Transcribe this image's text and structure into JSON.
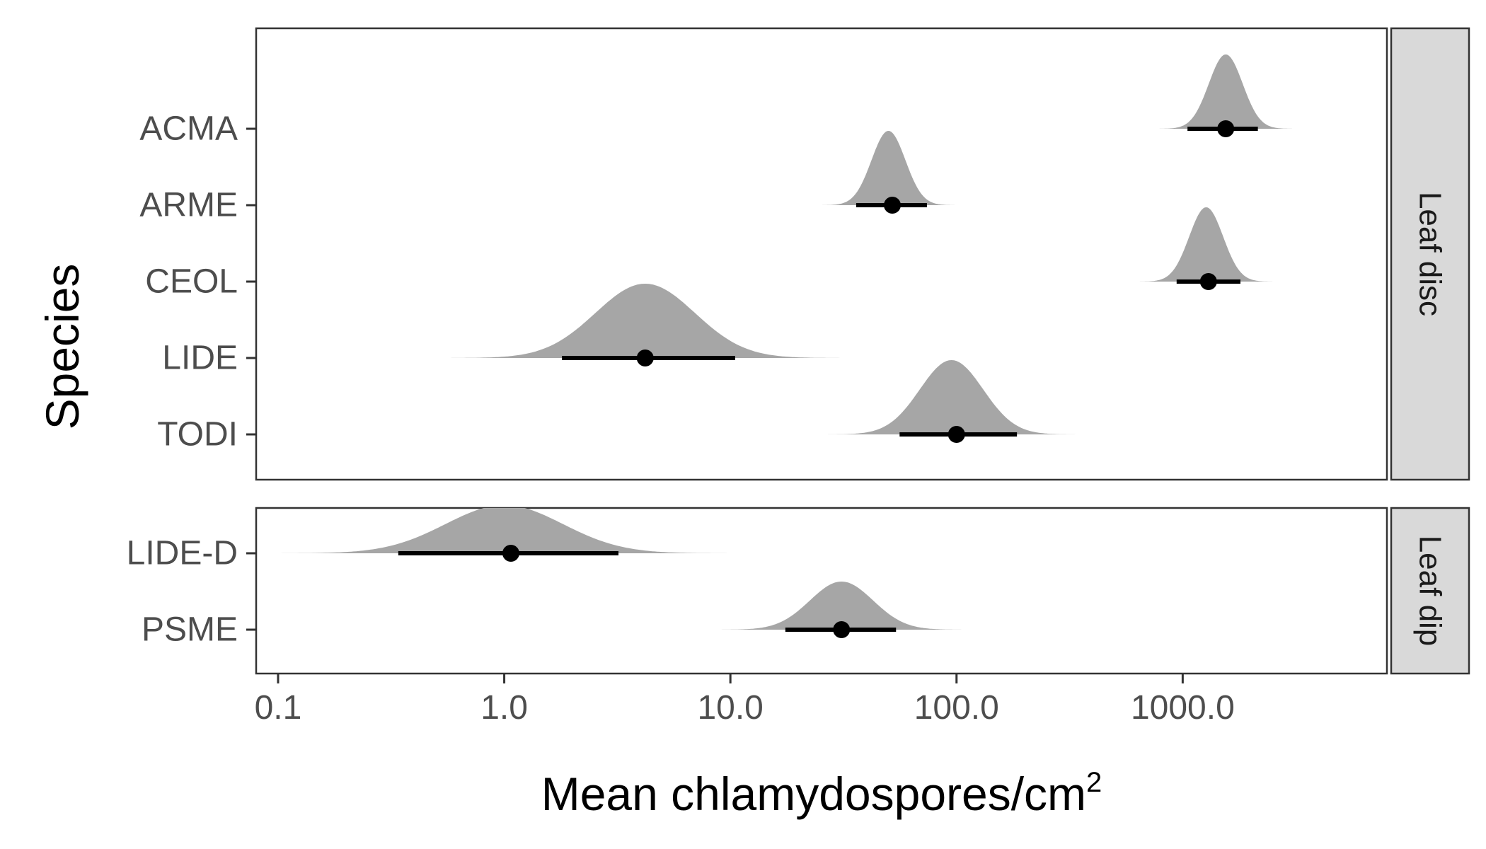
{
  "chart_data": {
    "type": "halfeye",
    "xlabel": "Mean chlamydospores/cm",
    "xlabel_superscript": "2",
    "ylabel": "Species",
    "xscale": "log10",
    "xlim": [
      0.08,
      8000
    ],
    "x_ticks": [
      0.1,
      1,
      10,
      100,
      1000
    ],
    "x_tick_labels": [
      "0.1",
      "1.0",
      "10.0",
      "100.0",
      "1000.0"
    ],
    "colors": {
      "density": "#a6a6a6",
      "interval": "#000000",
      "strip": "#d9d9d9",
      "border": "#333333"
    },
    "panels": [
      {
        "strip": "Leaf disc",
        "species": [
          {
            "name": "ACMA",
            "median": 1550,
            "interval": [
              1050,
              2150
            ],
            "mode": 1550,
            "sd": 0.075
          },
          {
            "name": "ARME",
            "median": 52,
            "interval": [
              36,
              74
            ],
            "mode": 50,
            "sd": 0.075
          },
          {
            "name": "CEOL",
            "median": 1300,
            "interval": [
              940,
              1800
            ],
            "mode": 1270,
            "sd": 0.075
          },
          {
            "name": "LIDE",
            "median": 4.2,
            "interval": [
              1.8,
              10.5
            ],
            "mode": 4.2,
            "sd": 0.22
          },
          {
            "name": "TODI",
            "median": 100,
            "interval": [
              56,
              185
            ],
            "mode": 95,
            "sd": 0.14
          }
        ]
      },
      {
        "strip": "Leaf dip",
        "species": [
          {
            "name": "LIDE-D",
            "median": 1.07,
            "interval": [
              0.34,
              3.2
            ],
            "mode": 1.0,
            "sd": 0.26
          },
          {
            "name": "PSME",
            "median": 31,
            "interval": [
              17.5,
              54
            ],
            "mode": 31,
            "sd": 0.14
          }
        ]
      }
    ]
  }
}
